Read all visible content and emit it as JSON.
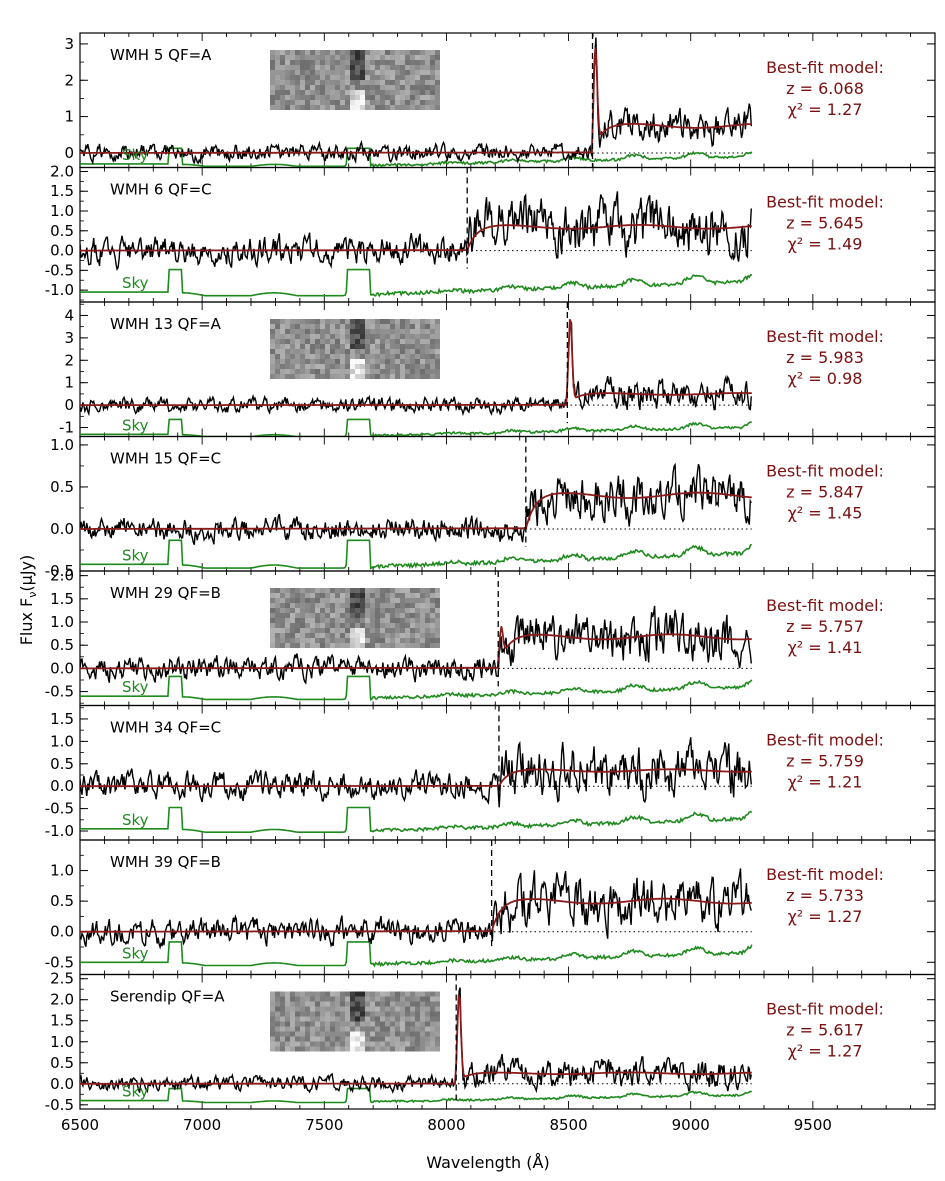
{
  "figure": {
    "xlabel": "Wavelength (Å)",
    "ylabel": "Flux F",
    "ylabel_sub": "ν",
    "ylabel_unit": "(μJy)",
    "sky_label": "Sky",
    "fit_label": "Best-fit model:",
    "z_prefix": "z = ",
    "chi_prefix": "χ² = ",
    "colors": {
      "data": "#000000",
      "model": "#8b1a1a",
      "sky": "#1e8a1e",
      "label": "#7a1010",
      "sky_text": "#1e8a1e"
    }
  },
  "chart_data": {
    "type": "line",
    "xlim": [
      6500,
      10000
    ],
    "xticks": [
      6500,
      7000,
      7500,
      8000,
      8500,
      9000,
      9500
    ],
    "data_xmax": 9250,
    "panels": [
      {
        "name": "WMH 5",
        "qf": "QF=A",
        "z": "6.068",
        "chi2": "1.27",
        "ylim": [
          -0.4,
          3.3
        ],
        "yticks": [
          0,
          1,
          2,
          3
        ],
        "break_wavelength": 8598,
        "line_peak": 2.9,
        "continuum": 0.75,
        "noise": 0.2,
        "sky_base": -0.3,
        "sky_amp": 0.45,
        "thumbnail": true,
        "seed": 5
      },
      {
        "name": "WMH 6",
        "qf": "QF=C",
        "z": "5.645",
        "chi2": "1.49",
        "ylim": [
          -1.3,
          2.1
        ],
        "yticks": [
          -1.0,
          -0.5,
          0.0,
          0.5,
          1.0,
          1.5,
          2.0
        ],
        "break_wavelength": 8085,
        "line_peak": 0,
        "continuum": 0.6,
        "noise": 0.3,
        "sky_base": -1.05,
        "sky_amp": 0.6,
        "thumbnail": false,
        "seed": 6
      },
      {
        "name": "WMH 13",
        "qf": "QF=A",
        "z": "5.983",
        "chi2": "0.98",
        "ylim": [
          -1.4,
          4.6
        ],
        "yticks": [
          -1,
          0,
          1,
          2,
          3,
          4
        ],
        "break_wavelength": 8495,
        "line_peak": 4.0,
        "continuum": 0.5,
        "noise": 0.3,
        "sky_base": -1.3,
        "sky_amp": 0.7,
        "thumbnail": true,
        "seed": 13
      },
      {
        "name": "WMH 15",
        "qf": "QF=C",
        "z": "5.847",
        "chi2": "1.45",
        "ylim": [
          -0.5,
          1.1
        ],
        "yticks": [
          -0.5,
          0.0,
          0.5,
          1.0
        ],
        "break_wavelength": 8325,
        "line_peak": 0,
        "continuum": 0.4,
        "noise": 0.12,
        "sky_base": -0.42,
        "sky_amp": 0.3,
        "thumbnail": false,
        "seed": 15
      },
      {
        "name": "WMH 29",
        "qf": "QF=B",
        "z": "5.757",
        "chi2": "1.41",
        "ylim": [
          -0.8,
          2.1
        ],
        "yticks": [
          -0.5,
          0.0,
          0.5,
          1.0,
          1.5,
          2.0
        ],
        "break_wavelength": 8212,
        "line_peak": 0.9,
        "continuum": 0.68,
        "noise": 0.22,
        "sky_base": -0.6,
        "sky_amp": 0.45,
        "thumbnail": true,
        "seed": 29
      },
      {
        "name": "WMH 34",
        "qf": "QF=C",
        "z": "5.759",
        "chi2": "1.21",
        "ylim": [
          -1.2,
          1.8
        ],
        "yticks": [
          -1.0,
          -0.5,
          0.0,
          0.5,
          1.0,
          1.5
        ],
        "break_wavelength": 8215,
        "line_peak": 0,
        "continuum": 0.35,
        "noise": 0.25,
        "sky_base": -0.95,
        "sky_amp": 0.5,
        "thumbnail": false,
        "seed": 34
      },
      {
        "name": "WMH 39",
        "qf": "QF=B",
        "z": "5.733",
        "chi2": "1.27",
        "ylim": [
          -0.7,
          1.5
        ],
        "yticks": [
          -0.5,
          0.0,
          0.5,
          1.0
        ],
        "break_wavelength": 8185,
        "line_peak": 0,
        "continuum": 0.5,
        "noise": 0.18,
        "sky_base": -0.5,
        "sky_amp": 0.35,
        "thumbnail": false,
        "seed": 39
      },
      {
        "name": "Serendip",
        "qf": "QF=A",
        "z": "5.617",
        "chi2": "1.27",
        "ylim": [
          -0.6,
          2.6
        ],
        "yticks": [
          -0.5,
          0.0,
          0.5,
          1.0,
          1.5,
          2.0,
          2.5
        ],
        "break_wavelength": 8040,
        "line_peak": 2.2,
        "continuum": 0.25,
        "noise": 0.15,
        "sky_base": -0.4,
        "sky_amp": 0.3,
        "thumbnail": true,
        "seed": 8
      }
    ]
  }
}
